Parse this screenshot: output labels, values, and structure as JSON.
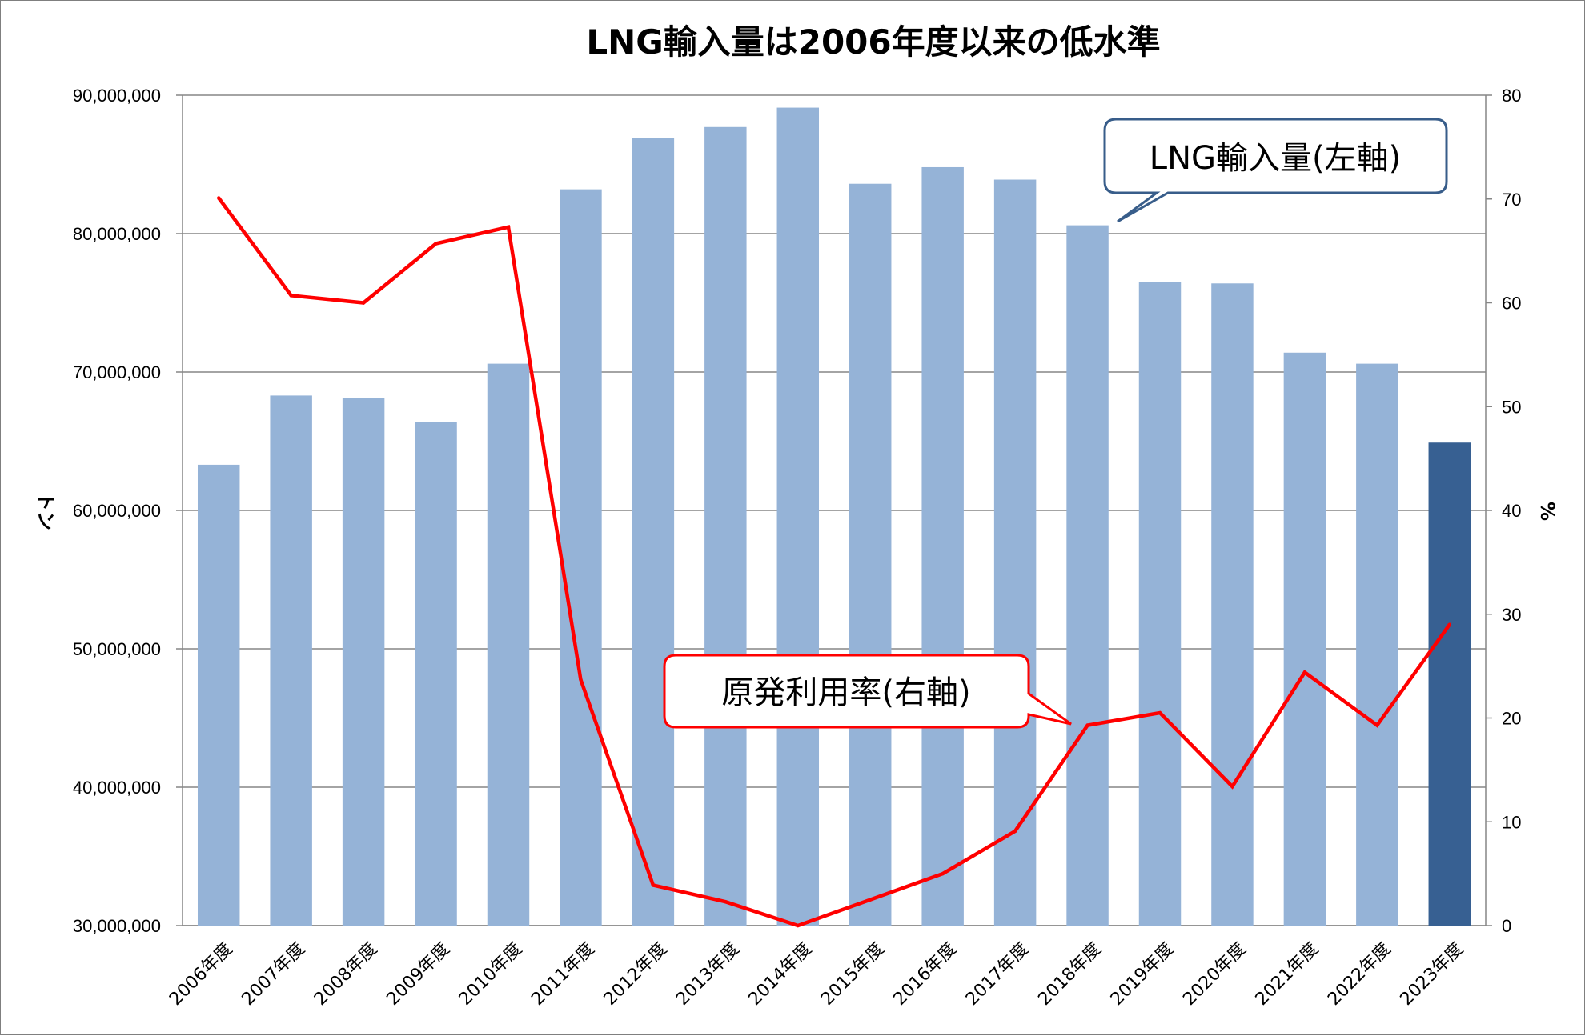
{
  "chart_data": {
    "type": "bar+line",
    "title": "LNG輸入量は2006年度以来の低水準",
    "categories": [
      "2006年度",
      "2007年度",
      "2008年度",
      "2009年度",
      "2010年度",
      "2011年度",
      "2012年度",
      "2013年度",
      "2014年度",
      "2015年度",
      "2016年度",
      "2017年度",
      "2018年度",
      "2019年度",
      "2020年度",
      "2021年度",
      "2022年度",
      "2023年度"
    ],
    "series": [
      {
        "name": "LNG輸入量(左軸)",
        "axis": "left",
        "kind": "bar",
        "values": [
          63300000,
          68300000,
          68100000,
          66400000,
          70600000,
          83200000,
          86900000,
          87700000,
          89100000,
          83600000,
          84800000,
          83900000,
          80600000,
          76500000,
          76400000,
          71400000,
          70600000,
          64900000
        ],
        "color": "#95b3d7",
        "highlight_color": "#376092",
        "highlight_index": 17
      },
      {
        "name": "原発利用率(右軸)",
        "axis": "right",
        "kind": "line",
        "values": [
          70.1,
          60.7,
          60.0,
          65.7,
          67.3,
          23.7,
          3.9,
          2.3,
          0,
          2.5,
          5.0,
          9.1,
          19.3,
          20.5,
          13.4,
          24.4,
          19.3,
          29.0
        ],
        "color": "#ff0000"
      }
    ],
    "y_left": {
      "label": "トン",
      "lim": [
        30000000,
        90000000
      ],
      "ticks": [
        "30,000,000",
        "40,000,000",
        "50,000,000",
        "60,000,000",
        "70,000,000",
        "80,000,000",
        "90,000,000"
      ]
    },
    "y_right": {
      "label": "%",
      "lim": [
        0,
        80
      ],
      "ticks": [
        "0",
        "10",
        "20",
        "30",
        "40",
        "50",
        "60",
        "70",
        "80"
      ]
    },
    "grid": true,
    "annotations": [
      {
        "text": "LNG輸入量(左軸)",
        "color": "#385d8a"
      },
      {
        "text": "原発利用率(右軸)",
        "color": "#ff0000"
      }
    ]
  }
}
